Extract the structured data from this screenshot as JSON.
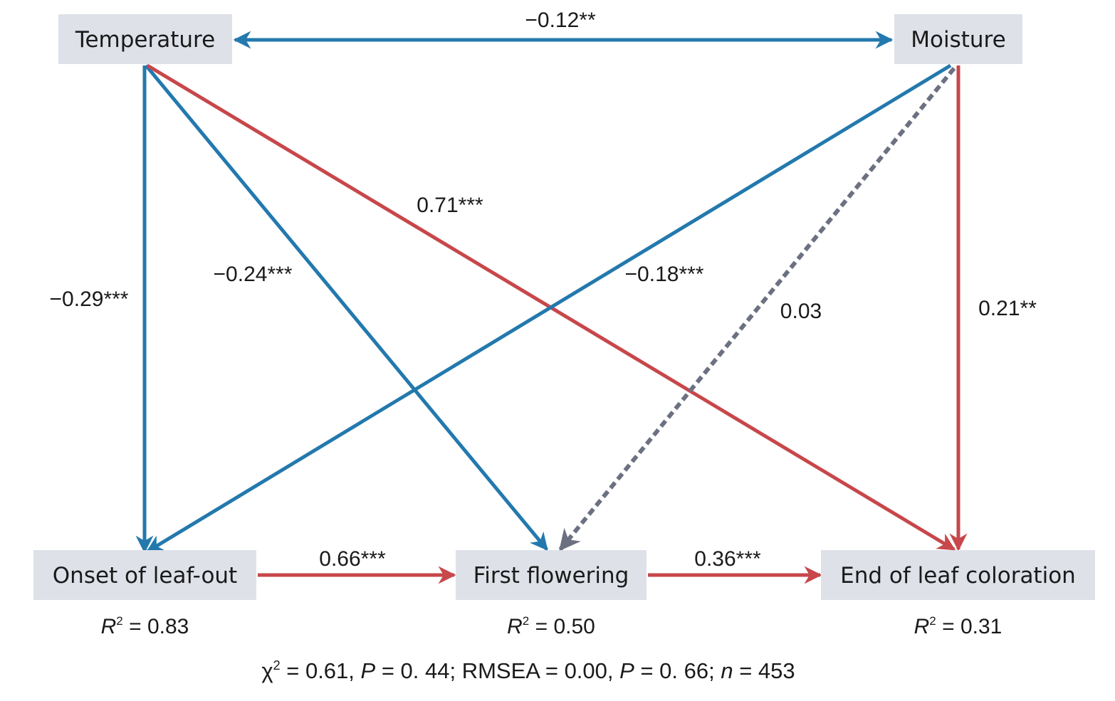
{
  "colors": {
    "negative": "#2379ad",
    "positive": "#c7474b",
    "nonsignificant": "#6c7182",
    "box": "#dee1e8"
  },
  "nodes": {
    "temperature": {
      "label": "Temperature"
    },
    "moisture": {
      "label": "Moisture"
    },
    "onset": {
      "label": "Onset of leaf-out",
      "r2": "0.83"
    },
    "flowering": {
      "label": "First flowering",
      "r2": "0.50"
    },
    "coloration": {
      "label": "End of leaf coloration",
      "r2": "0.31"
    }
  },
  "edges": [
    {
      "id": "temp-moist",
      "from": "temperature",
      "to": "moisture",
      "label": "−0.12**",
      "type": "negative",
      "bidirectional": true
    },
    {
      "id": "temp-onset",
      "from": "temperature",
      "to": "onset",
      "label": "−0.29***",
      "type": "negative"
    },
    {
      "id": "temp-flower",
      "from": "temperature",
      "to": "flowering",
      "label": "−0.24***",
      "type": "negative"
    },
    {
      "id": "temp-color",
      "from": "temperature",
      "to": "coloration",
      "label": "0.71***",
      "type": "positive"
    },
    {
      "id": "moist-onset",
      "from": "moisture",
      "to": "onset",
      "label": "−0.18***",
      "type": "negative"
    },
    {
      "id": "moist-flower",
      "from": "moisture",
      "to": "flowering",
      "label": "0.03",
      "type": "nonsignificant",
      "dashed": true
    },
    {
      "id": "moist-color",
      "from": "moisture",
      "to": "coloration",
      "label": "0.21**",
      "type": "positive"
    },
    {
      "id": "onset-flower",
      "from": "onset",
      "to": "flowering",
      "label": "0.66***",
      "type": "positive"
    },
    {
      "id": "flower-color",
      "from": "flowering",
      "to": "coloration",
      "label": "0.36***",
      "type": "positive"
    }
  ],
  "r2_prefix": "R",
  "r2_sup": "2",
  "fit": {
    "chi_symbol": "χ",
    "chi_sup": "2",
    "chi": " = 0.61, ",
    "p1_label": "P",
    "p1": " = 0. 44; RMSEA = 0.00, ",
    "p2_label": "P",
    "p2": " = 0. 66; ",
    "n_label": "n",
    "n": " = 453"
  }
}
